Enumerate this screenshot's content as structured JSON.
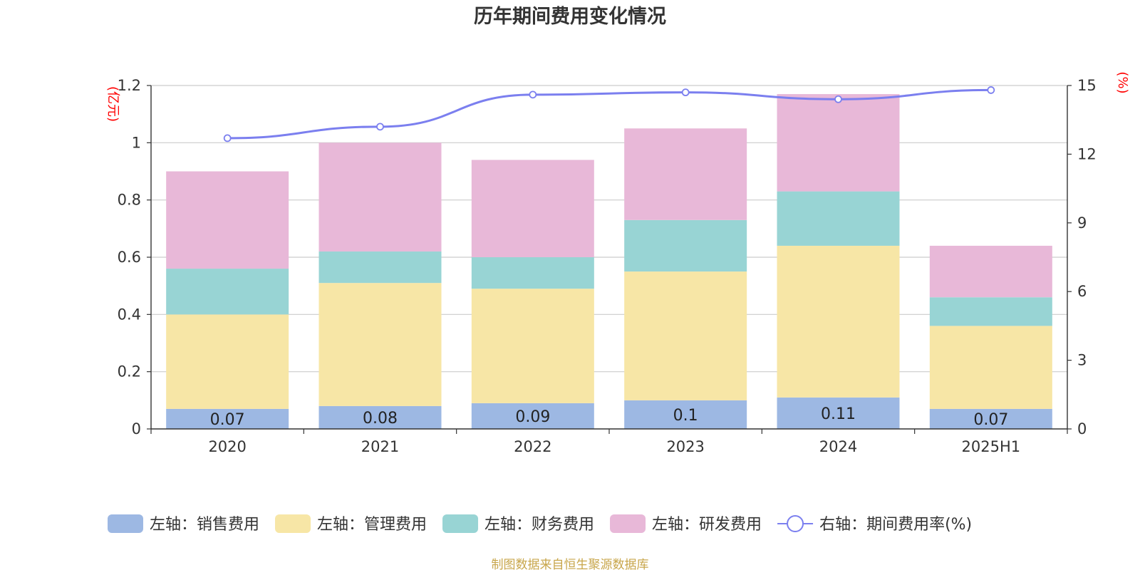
{
  "chart_data": {
    "type": "bar",
    "title": "历年期间费用变化情况",
    "categories": [
      "2020",
      "2021",
      "2022",
      "2023",
      "2024",
      "2025H1"
    ],
    "stacked": true,
    "left_axis": {
      "unit_label": "(亿元)",
      "ylim": [
        0,
        1.2
      ],
      "ticks": [
        "0",
        "0.2",
        "0.4",
        "0.6",
        "0.8",
        "1",
        "1.2"
      ]
    },
    "right_axis": {
      "unit_label": "(%)",
      "ylim": [
        0,
        15
      ],
      "ticks": [
        "0",
        "3",
        "6",
        "9",
        "12",
        "15"
      ]
    },
    "series": [
      {
        "name": "左轴：销售费用",
        "axis": "left",
        "type": "bar",
        "color": "#9db8e3",
        "values": [
          0.07,
          0.08,
          0.09,
          0.1,
          0.11,
          0.07
        ],
        "show_labels": true
      },
      {
        "name": "左轴：管理费用",
        "axis": "left",
        "type": "bar",
        "color": "#f7e6a6",
        "values": [
          0.33,
          0.43,
          0.4,
          0.45,
          0.53,
          0.29
        ]
      },
      {
        "name": "左轴：财务费用",
        "axis": "left",
        "type": "bar",
        "color": "#98d4d4",
        "values": [
          0.16,
          0.11,
          0.11,
          0.18,
          0.19,
          0.1
        ]
      },
      {
        "name": "左轴：研发费用",
        "axis": "left",
        "type": "bar",
        "color": "#e8b8d8",
        "values": [
          0.34,
          0.38,
          0.34,
          0.32,
          0.34,
          0.18
        ]
      },
      {
        "name": "右轴：期间费用率(%)",
        "axis": "right",
        "type": "line",
        "color": "#7b7fef",
        "values": [
          12.7,
          13.2,
          14.6,
          14.7,
          14.4,
          14.8
        ]
      }
    ],
    "grid": true,
    "legend_position": "bottom",
    "source_note": "制图数据来自恒生聚源数据库"
  }
}
